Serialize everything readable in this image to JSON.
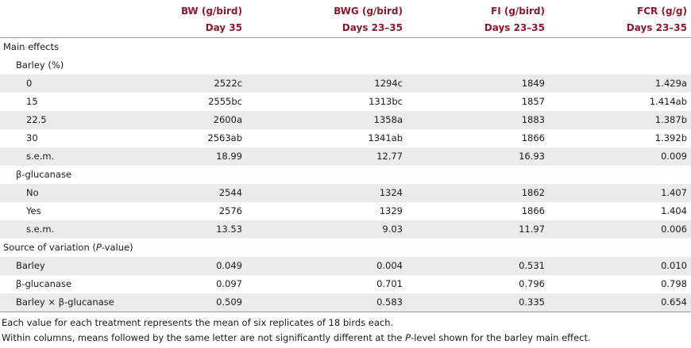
{
  "header": {
    "row1": [
      "BW (g/bird)",
      "BWG (g/bird)",
      "FI (g/bird)",
      "FCR (g/g)"
    ],
    "row2": [
      "Day 35",
      "Days 23–35",
      "Days 23–35",
      "Days 23–35"
    ]
  },
  "rows": [
    {
      "label": "Main effects",
      "level": 0,
      "values": [
        "",
        "",
        "",
        ""
      ],
      "shade": false
    },
    {
      "label": "Barley (%)",
      "level": 1,
      "values": [
        "",
        "",
        "",
        ""
      ],
      "shade": false
    },
    {
      "label": "0",
      "level": 2,
      "values": [
        "2522c",
        "1294c",
        "1849",
        "1.429a"
      ],
      "shade": true
    },
    {
      "label": "15",
      "level": 2,
      "values": [
        "2555bc",
        "1313bc",
        "1857",
        "1.414ab"
      ],
      "shade": false
    },
    {
      "label": "22.5",
      "level": 2,
      "values": [
        "2600a",
        "1358a",
        "1883",
        "1.387b"
      ],
      "shade": true
    },
    {
      "label": "30",
      "level": 2,
      "values": [
        "2563ab",
        "1341ab",
        "1866",
        "1.392b"
      ],
      "shade": false
    },
    {
      "label": "s.e.m.",
      "level": 2,
      "values": [
        "18.99",
        "12.77",
        "16.93",
        "0.009"
      ],
      "shade": true
    },
    {
      "label": "β-glucanase",
      "level": 1,
      "values": [
        "",
        "",
        "",
        ""
      ],
      "shade": false
    },
    {
      "label": "No",
      "level": 2,
      "values": [
        "2544",
        "1324",
        "1862",
        "1.407"
      ],
      "shade": true
    },
    {
      "label": "Yes",
      "level": 2,
      "values": [
        "2576",
        "1329",
        "1866",
        "1.404"
      ],
      "shade": false
    },
    {
      "label": "s.e.m.",
      "level": 2,
      "values": [
        "13.53",
        "9.03",
        "11.97",
        "0.006"
      ],
      "shade": true
    },
    {
      "label": "Source of variation (P-value)",
      "level": 0,
      "values": [
        "",
        "",
        "",
        ""
      ],
      "shade": false
    },
    {
      "label": "Barley",
      "level": 1,
      "values": [
        "0.049",
        "0.004",
        "0.531",
        "0.010"
      ],
      "shade": true
    },
    {
      "label": "β-glucanase",
      "level": 1,
      "values": [
        "0.097",
        "0.701",
        "0.796",
        "0.798"
      ],
      "shade": false
    },
    {
      "label": "Barley × β-glucanase",
      "level": 1,
      "values": [
        "0.509",
        "0.583",
        "0.335",
        "0.654"
      ],
      "shade": true
    }
  ],
  "notes": [
    "Each value for each treatment represents the mean of six replicates of 18 birds each.",
    "Within columns, means followed by the same letter are not significantly different at the P-level shown for the barley main effect."
  ]
}
